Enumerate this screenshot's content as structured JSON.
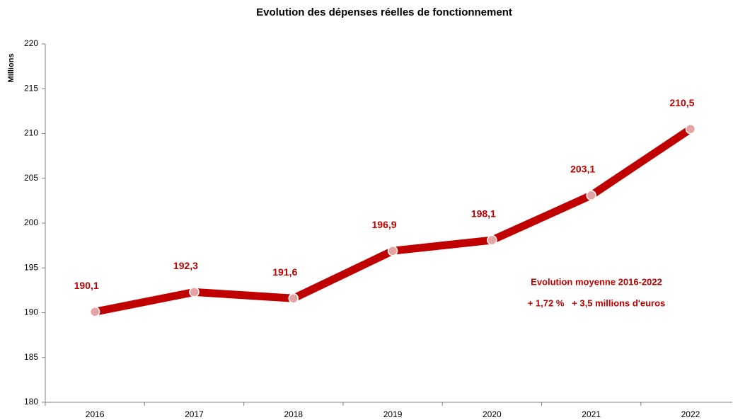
{
  "chart_data": {
    "type": "line",
    "title": "Evolution des dépenses réelles de fonctionnement",
    "y_label": "Millions",
    "categories": [
      "2016",
      "2017",
      "2018",
      "2019",
      "2020",
      "2021",
      "2022"
    ],
    "series": [
      {
        "name": "Dépenses réelles de fonctionnement",
        "color": "#c00000",
        "values": [
          190.1,
          192.3,
          191.6,
          196.9,
          198.1,
          203.1,
          210.5
        ],
        "value_labels": [
          "190,1",
          "192,3",
          "191,6",
          "196,9",
          "198,1",
          "203,1",
          "210,5"
        ]
      }
    ],
    "ylim": [
      180,
      220
    ],
    "yticks": [
      180,
      185,
      190,
      195,
      200,
      205,
      210,
      215,
      220
    ],
    "grid": false,
    "annotations": [
      "Evolution moyenne 2016-2022",
      "+ 1,72 %   + 3,5 millions d'euros"
    ]
  }
}
